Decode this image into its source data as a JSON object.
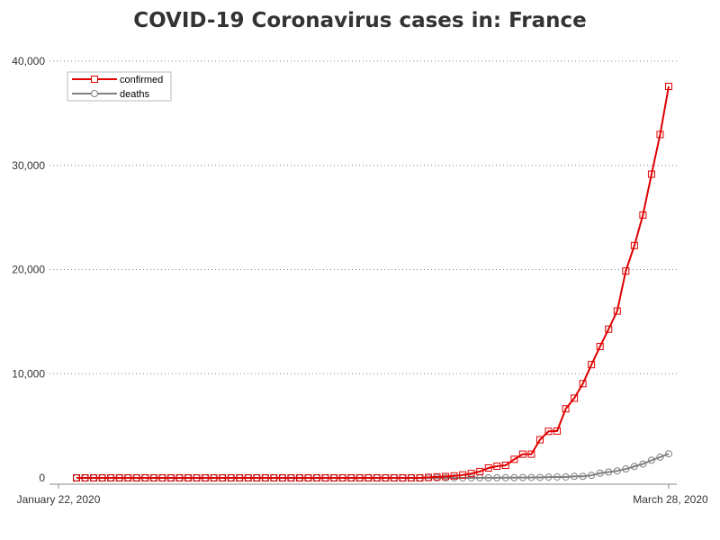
{
  "colors": {
    "confirmed": "#e00000",
    "deaths": "#808080",
    "grid": "#888888",
    "axis": "#888888",
    "text": "#333333"
  },
  "chart_data": {
    "type": "line",
    "title": "COVID-19 Coronavirus cases in: France",
    "xlabel": "",
    "ylabel": "",
    "x_start": "January 22, 2020",
    "x_end": "March 28, 2020",
    "x_tick_labels": [
      "January 22, 2020",
      "March 28, 2020"
    ],
    "ylim": [
      0,
      40000
    ],
    "y_ticks": [
      0,
      10000,
      20000,
      30000,
      40000
    ],
    "y_tick_labels": [
      "0",
      "10,000",
      "20,000",
      "30,000",
      "40,000"
    ],
    "grid": "horizontal dotted",
    "legend": "top-left",
    "series": [
      {
        "name": "confirmed",
        "marker": "square",
        "values": [
          0,
          0,
          0,
          0,
          0,
          0,
          0,
          0,
          0,
          0,
          0,
          0,
          0,
          0,
          0,
          0,
          0,
          0,
          0,
          0,
          0,
          0,
          0,
          0,
          0,
          0,
          0,
          0,
          0,
          0,
          0,
          0,
          0,
          0,
          0,
          0,
          0,
          0,
          0,
          0,
          0,
          50,
          100,
          130,
          190,
          285,
          420,
          613,
          949,
          1126,
          1209,
          1784,
          2281,
          2281,
          3661,
          4469,
          4499,
          6633,
          7652,
          9043,
          10871,
          12612,
          14282,
          16018,
          19856,
          22304,
          25233,
          29155,
          32964,
          37575
        ]
      },
      {
        "name": "deaths",
        "marker": "circle",
        "values": [
          0,
          0,
          0,
          0,
          0,
          0,
          0,
          0,
          0,
          0,
          0,
          0,
          0,
          0,
          0,
          0,
          0,
          0,
          0,
          0,
          0,
          0,
          0,
          0,
          0,
          0,
          0,
          0,
          0,
          0,
          0,
          0,
          0,
          0,
          0,
          0,
          0,
          0,
          0,
          0,
          0,
          2,
          2,
          2,
          3,
          4,
          4,
          6,
          9,
          11,
          19,
          19,
          33,
          48,
          48,
          79,
          91,
          91,
          148,
          148,
          243,
          450,
          562,
          674,
          860,
          1100,
          1331,
          1696,
          1995,
          2314
        ]
      }
    ]
  }
}
